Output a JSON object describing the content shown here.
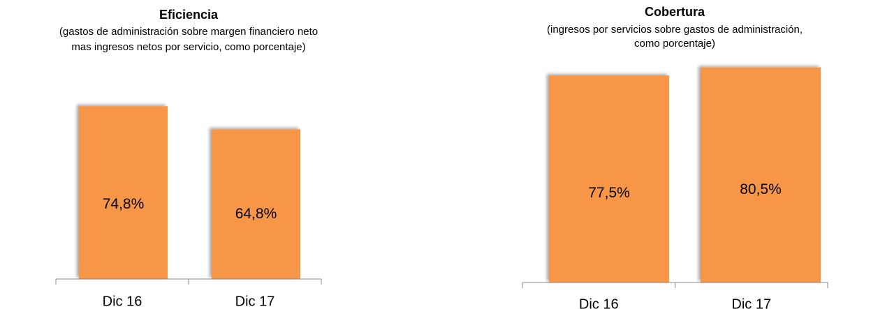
{
  "chart_data": [
    {
      "type": "bar",
      "title": "Eficiencia",
      "subtitle": [
        "(gastos de administración sobre margen financiero neto",
        "mas ingresos netos por servicio, como porcentaje)"
      ],
      "categories": [
        "Dic 16",
        "Dic 17"
      ],
      "values": [
        74.8,
        64.8
      ],
      "value_labels": [
        "74,8%",
        "64,8%"
      ],
      "color": "#f79646",
      "ylim": [
        0,
        80
      ]
    },
    {
      "type": "bar",
      "title": "Cobertura",
      "subtitle": [
        "(ingresos por servicios sobre gastos de administración,",
        "como porcentaje)"
      ],
      "categories": [
        "Dic 16",
        "Dic 17"
      ],
      "values": [
        77.5,
        80.5
      ],
      "value_labels": [
        "77,5%",
        "80,5%"
      ],
      "color": "#f79646",
      "ylim": [
        0,
        82
      ]
    }
  ]
}
